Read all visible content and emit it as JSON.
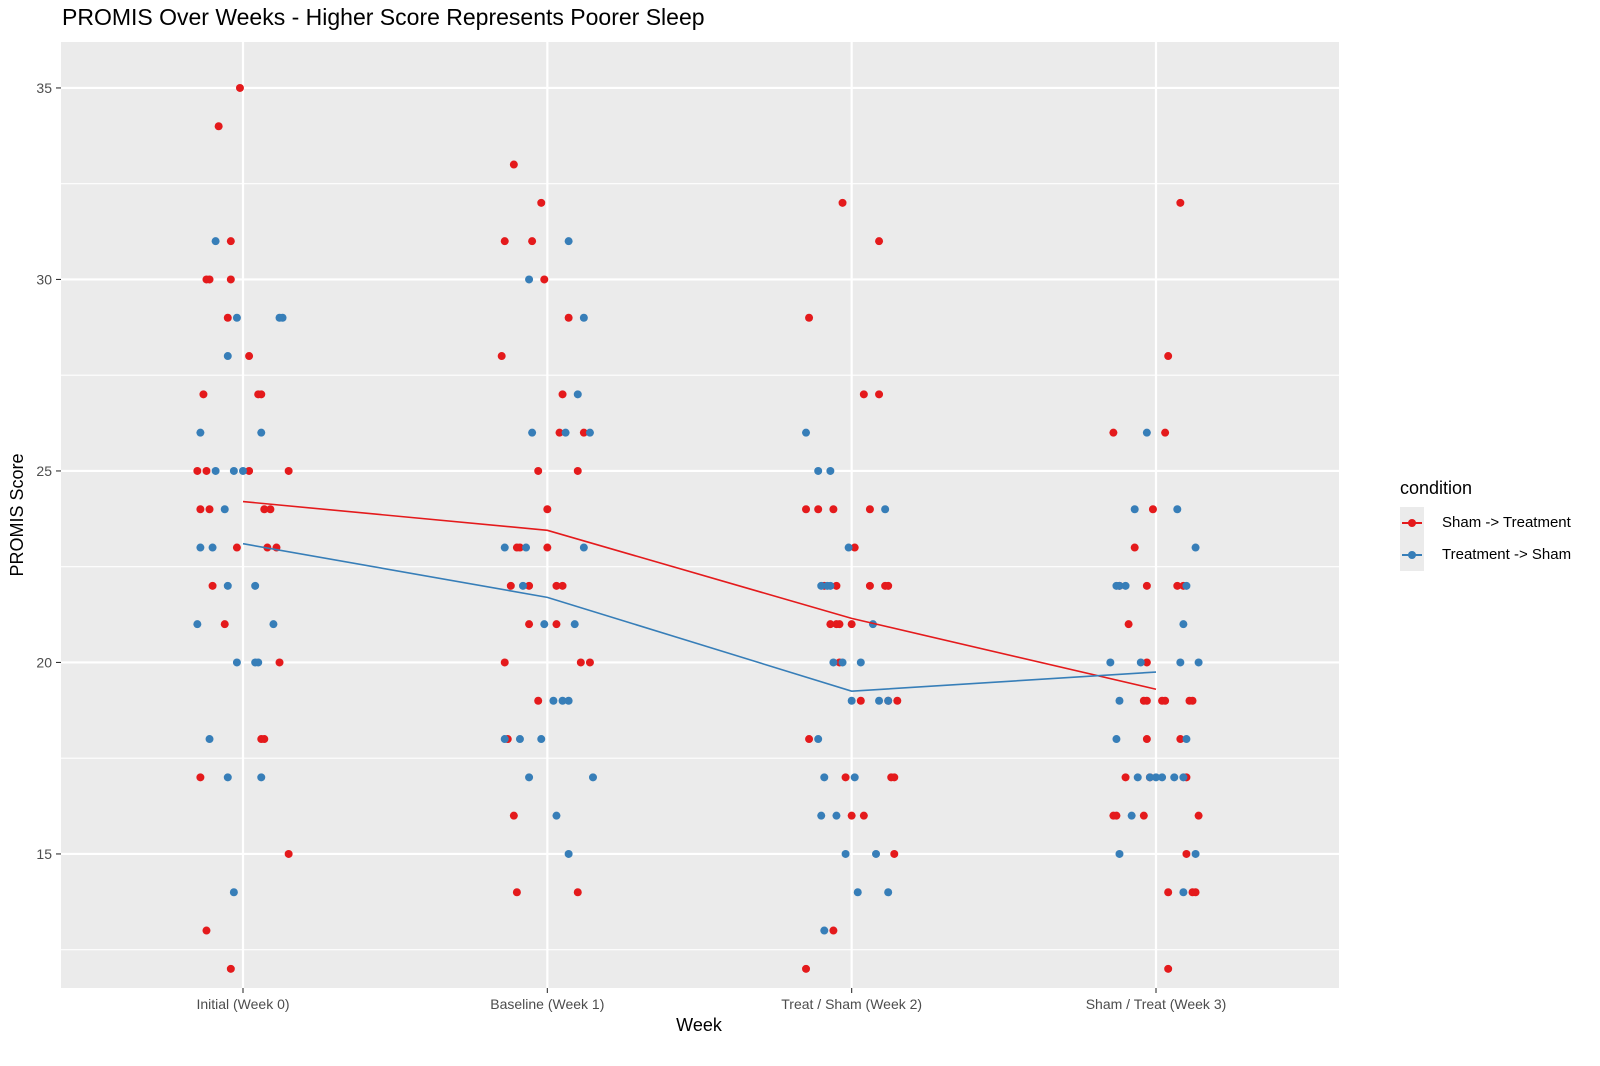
{
  "chart_data": {
    "type": "scatter",
    "title": "PROMIS Over Weeks - Higher Score Represents Poorer Sleep",
    "xlabel": "Week",
    "ylabel": "PROMIS Score",
    "categories": [
      "Initial (Week 0)",
      "Baseline (Week 1)",
      "Treat / Sham (Week 2)",
      "Sham / Treat (Week 3)"
    ],
    "ylim": [
      11.5,
      36.2
    ],
    "yticks": [
      15,
      20,
      25,
      30,
      35
    ],
    "grid": true,
    "legend_position": "right",
    "legend_title": "condition",
    "series": [
      {
        "name": "Sham -> Treatment",
        "color": "#e41a1c",
        "mean_line": [
          24.2,
          23.45,
          21.15,
          19.3
        ],
        "points": [
          [
            [
              35,
              -0.01
            ],
            [
              34,
              -0.08
            ],
            [
              31,
              -0.04
            ],
            [
              30,
              -0.12
            ],
            [
              30,
              -0.11
            ],
            [
              30,
              -0.04
            ],
            [
              29,
              -0.05
            ],
            [
              28,
              0.02
            ],
            [
              27,
              -0.13
            ],
            [
              27,
              0.05
            ],
            [
              27,
              0.06
            ],
            [
              25,
              -0.15
            ],
            [
              25,
              -0.12
            ],
            [
              25,
              0.02
            ],
            [
              25,
              0.15
            ],
            [
              24,
              -0.14
            ],
            [
              24,
              -0.11
            ],
            [
              24,
              0.07
            ],
            [
              24,
              0.09
            ],
            [
              23,
              -0.02
            ],
            [
              23,
              0.08
            ],
            [
              23,
              0.11
            ],
            [
              22,
              -0.1
            ],
            [
              21,
              -0.06
            ],
            [
              20,
              0.12
            ],
            [
              18,
              0.06
            ],
            [
              18,
              0.07
            ],
            [
              17,
              -0.14
            ],
            [
              15,
              0.15
            ],
            [
              13,
              -0.12
            ],
            [
              12,
              -0.04
            ]
          ],
          [
            [
              33,
              -0.11
            ],
            [
              32,
              -0.02
            ],
            [
              31,
              -0.14
            ],
            [
              31,
              -0.05
            ],
            [
              30,
              -0.01
            ],
            [
              29,
              0.07
            ],
            [
              28,
              -0.15
            ],
            [
              27,
              0.05
            ],
            [
              26,
              0.04
            ],
            [
              26,
              0.12
            ],
            [
              25,
              -0.03
            ],
            [
              25,
              0.1
            ],
            [
              24,
              0.0
            ],
            [
              23,
              -0.1
            ],
            [
              23,
              -0.09
            ],
            [
              23,
              0.0
            ],
            [
              22,
              -0.12
            ],
            [
              22,
              -0.06
            ],
            [
              22,
              0.03
            ],
            [
              22,
              0.05
            ],
            [
              21,
              -0.06
            ],
            [
              21,
              0.03
            ],
            [
              20,
              -0.14
            ],
            [
              20,
              0.11
            ],
            [
              20,
              0.14
            ],
            [
              19,
              -0.03
            ],
            [
              18,
              -0.13
            ],
            [
              16,
              -0.11
            ],
            [
              14,
              -0.1
            ],
            [
              14,
              0.1
            ]
          ],
          [
            [
              32,
              -0.03
            ],
            [
              31,
              0.09
            ],
            [
              29,
              -0.14
            ],
            [
              27,
              0.04
            ],
            [
              27,
              0.09
            ],
            [
              24,
              -0.15
            ],
            [
              24,
              -0.11
            ],
            [
              24,
              -0.06
            ],
            [
              24,
              0.06
            ],
            [
              23,
              0.01
            ],
            [
              22,
              -0.09
            ],
            [
              22,
              -0.05
            ],
            [
              22,
              0.06
            ],
            [
              22,
              0.11
            ],
            [
              22,
              0.12
            ],
            [
              21,
              -0.07
            ],
            [
              21,
              -0.05
            ],
            [
              21,
              -0.04
            ],
            [
              21,
              0.0
            ],
            [
              20,
              -0.04
            ],
            [
              19,
              0.03
            ],
            [
              19,
              0.12
            ],
            [
              19,
              0.15
            ],
            [
              18,
              -0.14
            ],
            [
              17,
              -0.02
            ],
            [
              17,
              0.13
            ],
            [
              17,
              0.14
            ],
            [
              16,
              0.0
            ],
            [
              16,
              0.04
            ],
            [
              15,
              0.14
            ],
            [
              13,
              -0.06
            ],
            [
              12,
              -0.15
            ]
          ],
          [
            [
              32,
              0.08
            ],
            [
              28,
              0.04
            ],
            [
              26,
              -0.14
            ],
            [
              26,
              0.03
            ],
            [
              24,
              -0.01
            ],
            [
              23,
              -0.07
            ],
            [
              22,
              -0.12
            ],
            [
              22,
              -0.03
            ],
            [
              22,
              0.07
            ],
            [
              22,
              0.09
            ],
            [
              21,
              -0.09
            ],
            [
              20,
              -0.03
            ],
            [
              19,
              -0.04
            ],
            [
              19,
              -0.03
            ],
            [
              19,
              0.02
            ],
            [
              19,
              0.03
            ],
            [
              19,
              0.11
            ],
            [
              19,
              0.12
            ],
            [
              18,
              -0.03
            ],
            [
              18,
              0.08
            ],
            [
              17,
              -0.1
            ],
            [
              17,
              -0.02
            ],
            [
              17,
              0.1
            ],
            [
              16,
              -0.14
            ],
            [
              16,
              -0.13
            ],
            [
              16,
              -0.04
            ],
            [
              16,
              0.14
            ],
            [
              15,
              0.1
            ],
            [
              14,
              0.04
            ],
            [
              14,
              0.12
            ],
            [
              14,
              0.13
            ],
            [
              12,
              0.04
            ]
          ]
        ]
      },
      {
        "name": "Treatment -> Sham",
        "color": "#377eb8",
        "mean_line": [
          23.1,
          21.7,
          19.25,
          19.75
        ],
        "points": [
          [
            [
              31,
              -0.09
            ],
            [
              29,
              -0.02
            ],
            [
              29,
              0.12
            ],
            [
              29,
              0.13
            ],
            [
              28,
              -0.05
            ],
            [
              26,
              -0.14
            ],
            [
              26,
              0.06
            ],
            [
              25,
              -0.09
            ],
            [
              25,
              -0.03
            ],
            [
              25,
              0.0
            ],
            [
              24,
              -0.06
            ],
            [
              23,
              -0.14
            ],
            [
              23,
              -0.1
            ],
            [
              22,
              -0.05
            ],
            [
              22,
              0.04
            ],
            [
              21,
              -0.15
            ],
            [
              21,
              0.1
            ],
            [
              20,
              -0.02
            ],
            [
              20,
              0.04
            ],
            [
              20,
              0.05
            ],
            [
              18,
              -0.11
            ],
            [
              17,
              -0.05
            ],
            [
              17,
              0.06
            ],
            [
              14,
              -0.03
            ]
          ],
          [
            [
              31,
              0.07
            ],
            [
              30,
              -0.06
            ],
            [
              29,
              0.12
            ],
            [
              27,
              0.1
            ],
            [
              26,
              -0.05
            ],
            [
              26,
              0.06
            ],
            [
              26,
              0.14
            ],
            [
              23,
              -0.14
            ],
            [
              23,
              -0.07
            ],
            [
              23,
              0.12
            ],
            [
              22,
              -0.08
            ],
            [
              21,
              -0.01
            ],
            [
              21,
              0.09
            ],
            [
              19,
              0.02
            ],
            [
              19,
              0.05
            ],
            [
              19,
              0.07
            ],
            [
              18,
              -0.14
            ],
            [
              18,
              -0.09
            ],
            [
              18,
              -0.02
            ],
            [
              17,
              -0.06
            ],
            [
              17,
              0.15
            ],
            [
              16,
              0.03
            ],
            [
              15,
              0.07
            ]
          ],
          [
            [
              26,
              -0.15
            ],
            [
              25,
              -0.11
            ],
            [
              25,
              -0.07
            ],
            [
              24,
              0.11
            ],
            [
              23,
              -0.01
            ],
            [
              22,
              -0.1
            ],
            [
              22,
              -0.08
            ],
            [
              22,
              -0.07
            ],
            [
              21,
              0.07
            ],
            [
              20,
              -0.06
            ],
            [
              20,
              -0.03
            ],
            [
              20,
              0.03
            ],
            [
              19,
              0.0
            ],
            [
              19,
              0.09
            ],
            [
              19,
              0.12
            ],
            [
              18,
              -0.11
            ],
            [
              17,
              -0.09
            ],
            [
              17,
              0.01
            ],
            [
              16,
              -0.1
            ],
            [
              16,
              -0.05
            ],
            [
              15,
              -0.02
            ],
            [
              15,
              0.08
            ],
            [
              14,
              0.02
            ],
            [
              14,
              0.12
            ],
            [
              13,
              -0.09
            ]
          ],
          [
            [
              26,
              -0.03
            ],
            [
              24,
              -0.07
            ],
            [
              24,
              0.07
            ],
            [
              23,
              0.13
            ],
            [
              22,
              -0.13
            ],
            [
              22,
              -0.12
            ],
            [
              22,
              -0.1
            ],
            [
              22,
              0.1
            ],
            [
              21,
              0.09
            ],
            [
              20,
              -0.15
            ],
            [
              20,
              -0.05
            ],
            [
              20,
              0.08
            ],
            [
              20,
              0.14
            ],
            [
              19,
              -0.12
            ],
            [
              18,
              -0.13
            ],
            [
              18,
              0.1
            ],
            [
              17,
              -0.06
            ],
            [
              17,
              -0.02
            ],
            [
              17,
              0.0
            ],
            [
              17,
              0.02
            ],
            [
              17,
              0.06
            ],
            [
              17,
              0.09
            ],
            [
              16,
              -0.08
            ],
            [
              15,
              -0.12
            ],
            [
              15,
              0.13
            ],
            [
              14,
              0.09
            ]
          ]
        ]
      }
    ]
  }
}
